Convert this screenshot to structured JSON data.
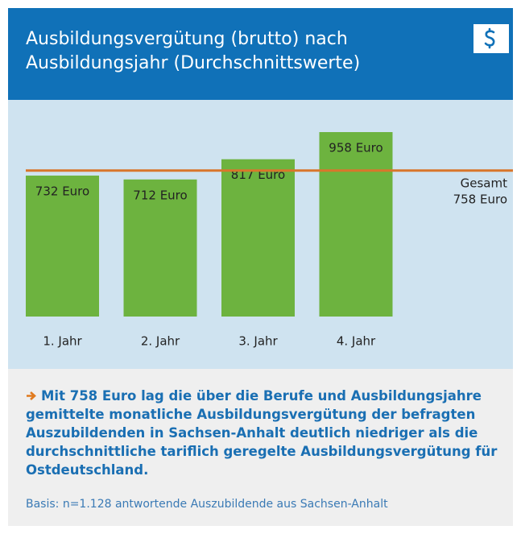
{
  "chart_data": {
    "type": "bar",
    "title": "Ausbildungsvergütung (brutto) nach Ausbildungsjahr (Durchschnittswerte)",
    "categories": [
      "1. Jahr",
      "2. Jahr",
      "3. Jahr",
      "4. Jahr"
    ],
    "values": [
      732,
      712,
      817,
      958
    ],
    "value_labels": [
      "732 Euro",
      "712 Euro",
      "817 Euro",
      "958 Euro"
    ],
    "color": "#6db33f",
    "reference_line": {
      "label": "Gesamt",
      "value": 758,
      "value_label": "758 Euro",
      "color": "#d9762b"
    },
    "note": "Mit 758 Euro lag die über die Berufe und Ausbildungsjahre gemittelte monatliche Ausbildungsvergütung der befragten Auszubildenden in Sachsen-Anhalt deutlich niedriger als die durchschnittliche tariflich geregelte Ausbildungsvergütung für Ostdeutschland.",
    "source": "Basis: n=1.128 antwortende Auszubildende aus Sachsen-Anhalt"
  }
}
